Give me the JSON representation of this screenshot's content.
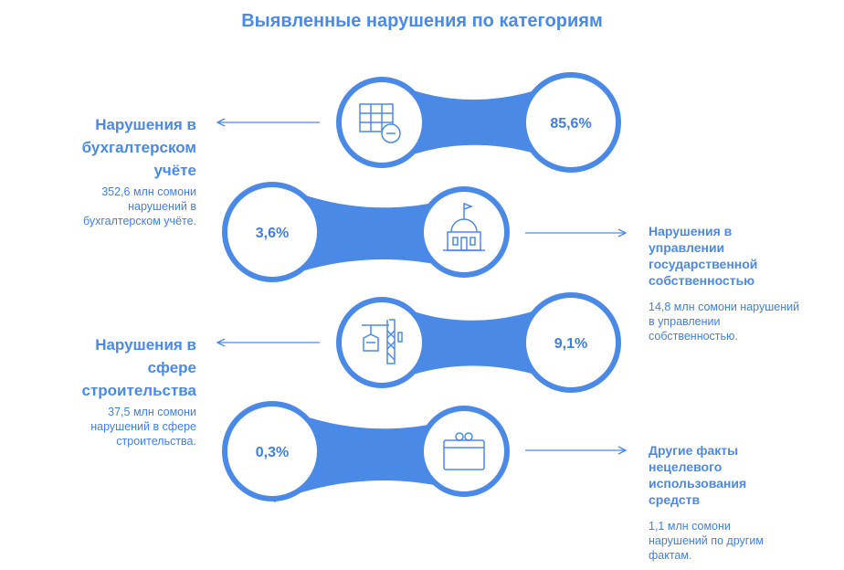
{
  "title": "Выявленные нарушения по категориям",
  "accent_color": "#4a8ae6",
  "items": [
    {
      "icon": "accounting-table-icon",
      "percent": "85,6%",
      "title": "Нарушения в бухгалтерском учёте",
      "description": "352,6 млн сомони нарушений в бухгалтерском учёте."
    },
    {
      "icon": "government-building-icon",
      "percent": "3,6%",
      "title": "Нарушения в управлении государственной собственностью",
      "description": "14,8 млн сомони нарушений в управлении собственностью."
    },
    {
      "icon": "construction-crane-icon",
      "percent": "9,1%",
      "title": "Нарушения в сфере строительства",
      "description": "37,5 млн сомони нарушений в сфере строительства."
    },
    {
      "icon": "money-funds-icon",
      "percent": "0,3%",
      "title": "Другие факты нецелевого использования средств",
      "description": "1,1 млн сомони нарушений по другим фактам."
    }
  ]
}
